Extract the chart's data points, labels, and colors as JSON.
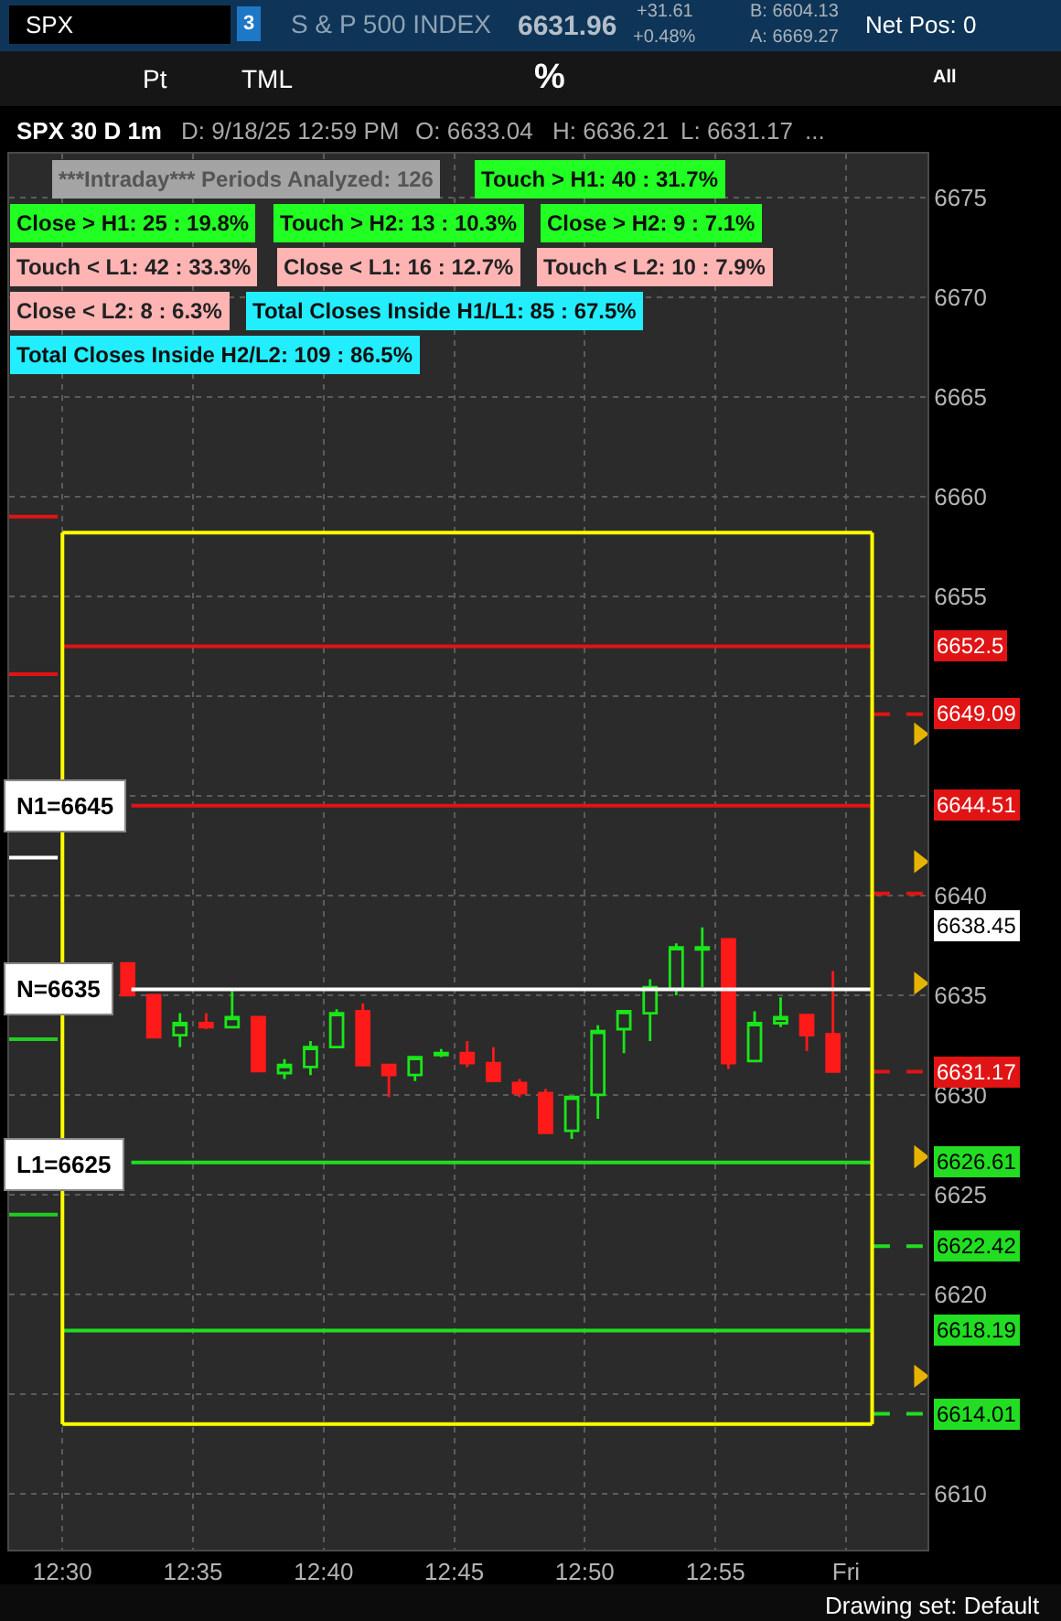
{
  "chart_data": {
    "type": "candlestick",
    "x": [
      12.5417,
      12.5583,
      12.575,
      12.5917,
      12.6083,
      12.625,
      12.6417,
      12.6583,
      12.675,
      12.6917,
      12.7083,
      12.725,
      12.7417,
      12.7583,
      12.775,
      12.7917,
      12.8083,
      12.825,
      12.8417,
      12.8583,
      12.875,
      12.8917,
      12.9083,
      12.925,
      12.9417,
      12.9583,
      12.975,
      12.9917
    ],
    "ohlc": [
      [
        6636.6,
        6636.6,
        6635.0,
        6635.0
      ],
      [
        6635.0,
        6635.0,
        6632.9,
        6632.9
      ],
      [
        6633.0,
        6634.1,
        6632.4,
        6633.6
      ],
      [
        6633.6,
        6634.1,
        6633.3,
        6633.4
      ],
      [
        6633.4,
        6635.2,
        6633.4,
        6633.9
      ],
      [
        6633.9,
        6633.9,
        6631.2,
        6631.2
      ],
      [
        6631.1,
        6631.8,
        6630.8,
        6631.5
      ],
      [
        6631.4,
        6632.7,
        6631.0,
        6632.4
      ],
      [
        6632.4,
        6634.3,
        6632.4,
        6634.1
      ],
      [
        6634.2,
        6634.6,
        6631.5,
        6631.5
      ],
      [
        6631.5,
        6631.5,
        6629.9,
        6631.0
      ],
      [
        6631.0,
        6631.9,
        6630.7,
        6631.9
      ],
      [
        6632.0,
        6632.3,
        6631.9,
        6632.1
      ],
      [
        6632.1,
        6632.7,
        6631.4,
        6631.6
      ],
      [
        6631.6,
        6632.4,
        6630.7,
        6630.7
      ],
      [
        6630.6,
        6630.8,
        6629.9,
        6630.1
      ],
      [
        6630.1,
        6630.3,
        6628.1,
        6628.1
      ],
      [
        6628.2,
        6629.9,
        6627.8,
        6629.9
      ],
      [
        6630.0,
        6633.5,
        6628.8,
        6633.2
      ],
      [
        6633.3,
        6634.2,
        6632.1,
        6634.2
      ],
      [
        6634.1,
        6635.8,
        6632.7,
        6635.4
      ],
      [
        6635.3,
        6637.6,
        6635.0,
        6637.4
      ],
      [
        6637.3,
        6638.4,
        6635.4,
        6637.4
      ],
      [
        6637.8,
        6637.8,
        6631.3,
        6631.6
      ],
      [
        6631.7,
        6634.2,
        6631.7,
        6633.6
      ],
      [
        6633.6,
        6634.9,
        6633.4,
        6633.9
      ],
      [
        6634.0,
        6634.0,
        6632.2,
        6633.0
      ],
      [
        6633.04,
        6636.21,
        6631.17,
        6631.17
      ]
    ],
    "colors": [
      "#ff1a1a",
      "#ff1a1a",
      "#19e619",
      "#ff1a1a",
      "#19e619",
      "#ff1a1a",
      "#19e619",
      "#19e619",
      "#19e619",
      "#ff1a1a",
      "#ff1a1a",
      "#19e619",
      "#19e619",
      "#ff1a1a",
      "#ff1a1a",
      "#ff1a1a",
      "#ff1a1a",
      "#19e619",
      "#19e619",
      "#19e619",
      "#19e619",
      "#19e619",
      "#19e619",
      "#ff1a1a",
      "#19e619",
      "#19e619",
      "#ff1a1a",
      "#ff1a1a"
    ],
    "series": [
      {
        "type": "line",
        "color": "#e01414",
        "x": [
          12.466,
          12.497
        ],
        "values": [
          6659.0,
          6659.0
        ]
      },
      {
        "type": "line",
        "color": "#e01414",
        "x": [
          12.466,
          12.497
        ],
        "values": [
          6651.1,
          6651.1
        ]
      },
      {
        "type": "line",
        "color": "#ffffff",
        "x": [
          12.466,
          12.497
        ],
        "values": [
          6641.9,
          6641.9
        ]
      },
      {
        "type": "line",
        "color": "#22cc22",
        "x": [
          12.466,
          12.497
        ],
        "values": [
          6632.8,
          6632.8
        ]
      },
      {
        "type": "line",
        "color": "#22cc22",
        "x": [
          12.466,
          12.497
        ],
        "values": [
          6624.0,
          6624.0
        ]
      },
      {
        "type": "line",
        "color": "#e01414",
        "x": [
          12.5,
          13.0167
        ],
        "values": [
          6652.5,
          6652.5
        ]
      },
      {
        "type": "line",
        "color": "#e01414",
        "x": [
          12.544,
          13.0167
        ],
        "values": [
          6644.51,
          6644.51
        ]
      },
      {
        "type": "line",
        "color": "#ffffff",
        "x": [
          12.544,
          13.0167
        ],
        "values": [
          6635.3,
          6635.3
        ]
      },
      {
        "type": "line",
        "color": "#22dd22",
        "x": [
          12.544,
          13.0167
        ],
        "values": [
          6626.61,
          6626.61
        ]
      },
      {
        "type": "line",
        "color": "#22dd22",
        "x": [
          12.5,
          13.0167
        ],
        "values": [
          6618.19,
          6618.19
        ]
      },
      {
        "type": "line",
        "color": "#e01414",
        "line_style": "dashed",
        "x": [
          13.0175,
          13.049
        ],
        "values": [
          6649.09,
          6649.09
        ],
        "value_labels": [
          null,
          "6649.09"
        ]
      },
      {
        "type": "line",
        "color": "#e01414",
        "line_style": "dashed",
        "x": [
          13.0175,
          13.049
        ],
        "values": [
          6640.1,
          6640.1
        ]
      },
      {
        "type": "line",
        "color": "#e01414",
        "line_style": "dashed",
        "x": [
          13.0175,
          13.049
        ],
        "values": [
          6631.17,
          6631.17
        ],
        "value_labels": [
          null,
          "6631.17"
        ]
      },
      {
        "type": "line",
        "color": "#22dd22",
        "line_style": "dashed",
        "x": [
          13.0175,
          13.049
        ],
        "values": [
          6622.42,
          6622.42
        ],
        "value_labels": [
          null,
          "6622.42"
        ]
      },
      {
        "type": "line",
        "color": "#22dd22",
        "line_style": "dashed",
        "x": [
          13.0175,
          13.049
        ],
        "values": [
          6614.01,
          6614.01
        ],
        "value_labels": [
          null,
          "6614.01"
        ]
      },
      {
        "type": "line",
        "color": "#ffff00",
        "x": [
          12.5,
          13.0167
        ],
        "values": [
          6658.2,
          6658.2
        ]
      },
      {
        "type": "line",
        "color": "#ffff00",
        "x": [
          12.5,
          13.0167
        ],
        "values": [
          6613.5,
          6613.5
        ]
      },
      {
        "type": "scatter",
        "color": "#e6b400",
        "marker": "triangle",
        "x": [
          13.0467,
          13.0467,
          13.0467,
          13.0467,
          13.0467
        ],
        "values": [
          6648.1,
          6641.7,
          6635.6,
          6626.9,
          6615.9
        ]
      }
    ],
    "ref_lines": [
      {
        "axis": "x",
        "value": 12.5,
        "color": "#ffff00"
      },
      {
        "axis": "x",
        "value": 13.0167,
        "color": "#ffff00"
      }
    ],
    "xlim": [
      12.466,
      13.052
    ],
    "ylim": [
      6607.2,
      6677.2
    ],
    "xticks": [
      {
        "value": 12.5,
        "label": "12:30"
      },
      {
        "value": 12.5833,
        "label": "12:35"
      },
      {
        "value": 12.6667,
        "label": "12:40"
      },
      {
        "value": 12.75,
        "label": "12:45"
      },
      {
        "value": 12.8333,
        "label": "12:50"
      },
      {
        "value": 12.9167,
        "label": "12:55"
      },
      {
        "value": 13.0,
        "label": "Fri"
      }
    ],
    "yticks": [
      6610,
      {
        "value": 6615,
        "label": null
      },
      6620,
      6625,
      6630,
      6635,
      6640,
      {
        "value": 6645,
        "label": null
      },
      {
        "value": 6650,
        "label": null
      },
      6655,
      6660,
      6665,
      6670,
      6675
    ],
    "grid": true,
    "annotations": [
      "SPX",
      "3",
      "S & P 500 INDEX",
      "6631.96",
      "+31.61",
      "+0.48%",
      "B: 6604.13",
      "A: 6669.27",
      "Net Pos: 0",
      "Pt",
      "TML",
      "%",
      "All",
      "SPX 30 D 1m",
      "D: 9/18/25 12:59 PM",
      "O: 6633.04",
      "H: 6636.21",
      "L: 6631.17",
      "...",
      "***Intraday*** Periods Analyzed: 126",
      "Touch > H1: 40 : 31.7%",
      "Close > H1: 25 : 19.8%",
      "Touch > H2: 13 : 10.3%",
      "Close > H2: 9 : 7.1%",
      "Touch < L1: 42 : 33.3%",
      "Close < L1: 16 : 12.7%",
      "Touch < L2: 10 : 7.9%",
      "Close < L2: 8 : 6.3%",
      "Total Closes Inside H1/L1: 85 : 67.5%",
      "Total Closes Inside H2/L2: 109 : 86.5%",
      "Drawing set: Default",
      "N1=6645",
      "N=6635",
      "L1=6625",
      "6638.45",
      "6652.5",
      "6644.51",
      "6626.61",
      "6618.19"
    ]
  }
}
